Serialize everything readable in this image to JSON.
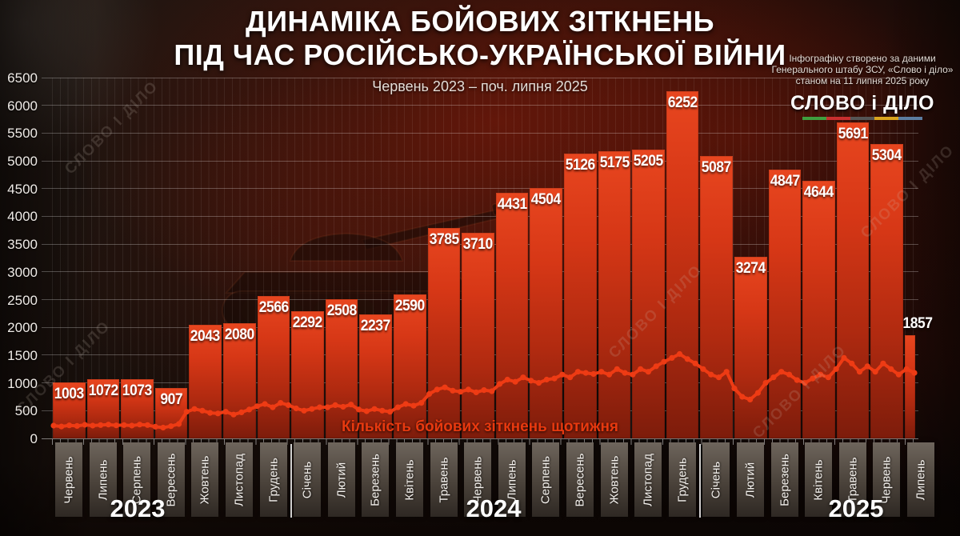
{
  "header": {
    "title_line1": "ДИНАМІКА БОЙОВИХ ЗІТКНЕНЬ",
    "title_line2": "ПІД ЧАС РОСІЙСЬКО-УКРАЇНСЬКОЇ ВІЙНИ",
    "subtitle": "Червень 2023 – поч. липня 2025"
  },
  "source": {
    "lines": [
      "Інфографіку створено за даними",
      "Генерального штабу ЗСУ, «Слово і діло»",
      "станом на 11 липня 2025 року"
    ],
    "logo_text": "СЛОВО і ДІЛО",
    "logo_stripe_colors": [
      "#3f9e3f",
      "#c92f2f",
      "#555555",
      "#d9a41e",
      "#5c7da0"
    ]
  },
  "watermark": {
    "text": "СЛОВО І ДІЛО"
  },
  "chart_data": {
    "type": "bar",
    "title": "ДИНАМІКА БОЙОВИХ ЗІТКНЕНЬ ПІД ЧАС РОСІЙСЬКО-УКРАЇНСЬКОЇ ВІЙНИ",
    "subtitle": "Червень 2023 – поч. липня 2025",
    "ylim": [
      0,
      6500
    ],
    "yticks": [
      0,
      500,
      1000,
      1500,
      2000,
      2500,
      3000,
      3500,
      4000,
      4500,
      5000,
      5500,
      6000,
      6500
    ],
    "grid": true,
    "categories": [
      "Червень",
      "Липень",
      "Серпень",
      "Вересень",
      "Жовтень",
      "Листопад",
      "Грудень",
      "Січень",
      "Лютий",
      "Березень",
      "Квітень",
      "Травень",
      "Червень",
      "Липень",
      "Серпень",
      "Вересень",
      "Жовтень",
      "Листопад",
      "Грудень",
      "Січень",
      "Лютий",
      "Березень",
      "Квітень",
      "Травень",
      "Червень",
      "Липень"
    ],
    "values": [
      1003,
      1072,
      1073,
      907,
      2043,
      2080,
      2566,
      2292,
      2508,
      2237,
      2590,
      3785,
      3710,
      4431,
      4504,
      5126,
      5175,
      5205,
      6252,
      5087,
      3274,
      4847,
      4644,
      5691,
      5304,
      1857
    ],
    "partial_last_bar": true,
    "years": [
      {
        "label": "2023",
        "from": 0,
        "to": 6
      },
      {
        "label": "2024",
        "from": 7,
        "to": 18
      },
      {
        "label": "2025",
        "from": 19,
        "to": 25
      }
    ],
    "bar_color_top": "#e8461f",
    "bar_color_bottom": "#7d1c0b",
    "line_series": {
      "name": "Кількість бойових зіткнень щотижня",
      "color": "#ee3b14",
      "frequency": "weekly",
      "values_estimated": true,
      "values": [
        230,
        215,
        235,
        225,
        245,
        230,
        240,
        250,
        235,
        240,
        230,
        250,
        240,
        210,
        195,
        220,
        260,
        480,
        530,
        500,
        460,
        450,
        480,
        430,
        470,
        520,
        580,
        620,
        560,
        640,
        600,
        540,
        500,
        530,
        560,
        560,
        600,
        570,
        610,
        520,
        490,
        530,
        500,
        480,
        560,
        620,
        590,
        640,
        800,
        880,
        920,
        860,
        840,
        880,
        830,
        870,
        850,
        980,
        1060,
        1020,
        1100,
        1040,
        1000,
        1060,
        1080,
        1150,
        1100,
        1200,
        1180,
        1160,
        1200,
        1150,
        1250,
        1180,
        1150,
        1250,
        1200,
        1300,
        1380,
        1450,
        1520,
        1430,
        1350,
        1250,
        1150,
        1100,
        1200,
        900,
        750,
        700,
        820,
        1000,
        1100,
        1200,
        1150,
        1050,
        1000,
        1080,
        1150,
        1100,
        1250,
        1450,
        1350,
        1200,
        1300,
        1200,
        1350,
        1250,
        1150,
        1250,
        1180
      ]
    }
  }
}
